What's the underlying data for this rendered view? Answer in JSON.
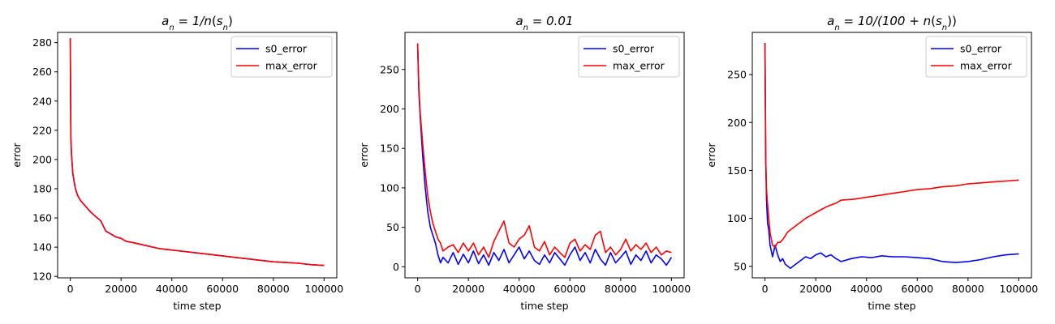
{
  "chart_data": [
    {
      "type": "line",
      "title": "a_n = 1/n(s_n)",
      "xlabel": "time step",
      "ylabel": "error",
      "xlim": [
        -5000,
        105000
      ],
      "ylim": [
        119,
        287
      ],
      "xticks": [
        0,
        20000,
        40000,
        60000,
        80000,
        100000
      ],
      "yticks": [
        120,
        140,
        160,
        180,
        200,
        220,
        240,
        260,
        280
      ],
      "legend": "top-right",
      "grid": false,
      "series": [
        {
          "name": "s0_error",
          "color": "#0000ff",
          "x": [
            0,
            200,
            500,
            1000,
            2000,
            3000,
            4000,
            6000,
            8000,
            10000,
            12000,
            14000,
            16000,
            18000,
            20000,
            22000,
            25000,
            30000,
            35000,
            40000,
            45000,
            50000,
            55000,
            60000,
            65000,
            70000,
            75000,
            80000,
            85000,
            90000,
            95000,
            100000
          ],
          "y": [
            283,
            215,
            203,
            190,
            180,
            175,
            172,
            168,
            164,
            161,
            158,
            151,
            149,
            147,
            146,
            144,
            143,
            141,
            139,
            138,
            137,
            136,
            135,
            134,
            133,
            132,
            131,
            130,
            129.5,
            129,
            128,
            127.5
          ]
        },
        {
          "name": "max_error",
          "color": "#ff0000",
          "x": [
            0,
            200,
            500,
            1000,
            2000,
            3000,
            4000,
            6000,
            8000,
            10000,
            12000,
            14000,
            16000,
            18000,
            20000,
            22000,
            25000,
            30000,
            35000,
            40000,
            45000,
            50000,
            55000,
            60000,
            65000,
            70000,
            75000,
            80000,
            85000,
            90000,
            95000,
            100000
          ],
          "y": [
            283,
            215,
            203,
            190,
            180,
            175,
            172,
            168,
            164,
            161,
            158,
            151,
            149,
            147,
            146,
            144,
            143,
            141,
            139,
            138,
            137,
            136,
            135,
            134,
            133,
            132,
            131,
            130,
            129.5,
            129,
            128,
            127.5
          ]
        }
      ]
    },
    {
      "type": "line",
      "title": "a_n = 0.01",
      "xlabel": "time step",
      "ylabel": "error",
      "xlim": [
        -5000,
        105000
      ],
      "ylim": [
        -14,
        297
      ],
      "xticks": [
        0,
        20000,
        40000,
        60000,
        80000,
        100000
      ],
      "yticks": [
        0,
        50,
        100,
        150,
        200,
        250
      ],
      "legend": "top-right",
      "grid": false,
      "series": [
        {
          "name": "s0_error",
          "color": "#0000ff",
          "x": [
            0,
            500,
            1000,
            2000,
            3000,
            4000,
            5000,
            6000,
            7000,
            8000,
            9000,
            10000,
            12000,
            14000,
            16000,
            18000,
            20000,
            22000,
            24000,
            26000,
            28000,
            30000,
            32000,
            34000,
            36000,
            38000,
            40000,
            42000,
            44000,
            46000,
            48000,
            50000,
            52000,
            54000,
            56000,
            58000,
            60000,
            62000,
            64000,
            66000,
            68000,
            70000,
            72000,
            74000,
            76000,
            78000,
            80000,
            82000,
            84000,
            86000,
            88000,
            90000,
            92000,
            94000,
            96000,
            98000,
            100000
          ],
          "y": [
            283,
            220,
            190,
            140,
            100,
            70,
            50,
            40,
            30,
            15,
            5,
            12,
            5,
            18,
            3,
            16,
            5,
            20,
            4,
            15,
            2,
            18,
            8,
            22,
            5,
            15,
            25,
            10,
            20,
            8,
            3,
            15,
            5,
            18,
            10,
            2,
            15,
            25,
            8,
            18,
            5,
            22,
            10,
            2,
            18,
            5,
            12,
            20,
            3,
            15,
            8,
            20,
            5,
            15,
            10,
            2,
            12
          ]
        },
        {
          "name": "max_error",
          "color": "#ff0000",
          "x": [
            0,
            500,
            1000,
            2000,
            3000,
            4000,
            5000,
            6000,
            7000,
            8000,
            9000,
            10000,
            12000,
            14000,
            16000,
            18000,
            20000,
            22000,
            24000,
            26000,
            28000,
            30000,
            32000,
            34000,
            36000,
            38000,
            40000,
            42000,
            44000,
            46000,
            48000,
            50000,
            52000,
            54000,
            56000,
            58000,
            60000,
            62000,
            64000,
            66000,
            68000,
            70000,
            72000,
            74000,
            76000,
            78000,
            80000,
            82000,
            84000,
            86000,
            88000,
            90000,
            92000,
            94000,
            96000,
            98000,
            100000
          ],
          "y": [
            283,
            225,
            195,
            155,
            120,
            90,
            70,
            55,
            45,
            35,
            30,
            20,
            25,
            28,
            18,
            30,
            20,
            30,
            15,
            25,
            12,
            32,
            45,
            58,
            30,
            25,
            35,
            40,
            52,
            25,
            20,
            32,
            15,
            25,
            18,
            12,
            30,
            35,
            20,
            28,
            22,
            40,
            45,
            18,
            25,
            15,
            22,
            35,
            20,
            28,
            22,
            30,
            18,
            25,
            15,
            20,
            18
          ]
        }
      ]
    },
    {
      "type": "line",
      "title": "a_n = 10/(100 + n(s_n))",
      "xlabel": "time step",
      "ylabel": "error",
      "xlim": [
        -5000,
        105000
      ],
      "ylim": [
        38,
        294
      ],
      "xticks": [
        0,
        20000,
        40000,
        60000,
        80000,
        100000
      ],
      "yticks": [
        50,
        100,
        150,
        200,
        250
      ],
      "legend": "top-right",
      "grid": false,
      "series": [
        {
          "name": "s0_error",
          "color": "#0000ff",
          "x": [
            0,
            300,
            600,
            1000,
            1500,
            2000,
            3000,
            4000,
            5000,
            6000,
            7000,
            8000,
            9000,
            10000,
            12000,
            14000,
            16000,
            18000,
            20000,
            22000,
            24000,
            26000,
            28000,
            30000,
            34000,
            38000,
            42000,
            46000,
            50000,
            55000,
            60000,
            65000,
            70000,
            75000,
            80000,
            85000,
            90000,
            95000,
            100000
          ],
          "y": [
            283,
            160,
            120,
            95,
            88,
            72,
            60,
            72,
            62,
            55,
            58,
            52,
            50,
            48,
            52,
            56,
            60,
            58,
            62,
            64,
            60,
            62,
            58,
            55,
            58,
            60,
            59,
            61,
            60,
            60,
            59,
            58,
            55,
            54,
            55,
            57,
            60,
            62,
            63
          ]
        },
        {
          "name": "max_error",
          "color": "#ff0000",
          "x": [
            0,
            300,
            600,
            1000,
            1500,
            2000,
            3000,
            4000,
            5000,
            6000,
            7000,
            8000,
            9000,
            10000,
            12000,
            14000,
            16000,
            18000,
            20000,
            22000,
            25000,
            28000,
            30000,
            35000,
            40000,
            45000,
            50000,
            55000,
            60000,
            65000,
            70000,
            75000,
            80000,
            85000,
            90000,
            95000,
            100000
          ],
          "y": [
            283,
            160,
            130,
            115,
            100,
            85,
            72,
            70,
            75,
            75,
            78,
            82,
            86,
            88,
            92,
            96,
            100,
            103,
            106,
            109,
            113,
            116,
            119,
            120,
            122,
            124,
            126,
            128,
            130,
            131,
            133,
            134,
            136,
            137,
            138,
            139,
            140
          ]
        }
      ]
    }
  ],
  "panels": [
    {
      "title_html": "<tspan>a</tspan><tspan baseline-shift=\"sub\" font-size=\"10\">n</tspan><tspan> = 1/</tspan><tspan>n</tspan><tspan font-style=\"normal\">(</tspan><tspan>s</tspan><tspan baseline-shift=\"sub\" font-size=\"10\">n</tspan><tspan font-style=\"normal\">)</tspan>"
    },
    {
      "title_html": "<tspan>a</tspan><tspan baseline-shift=\"sub\" font-size=\"10\">n</tspan><tspan> = 0.01</tspan>"
    },
    {
      "title_html": "<tspan>a</tspan><tspan baseline-shift=\"sub\" font-size=\"10\">n</tspan><tspan> = 10/(100 + </tspan><tspan>n</tspan><tspan font-style=\"normal\">(</tspan><tspan>s</tspan><tspan baseline-shift=\"sub\" font-size=\"10\">n</tspan><tspan font-style=\"normal\">))</tspan>"
    }
  ]
}
